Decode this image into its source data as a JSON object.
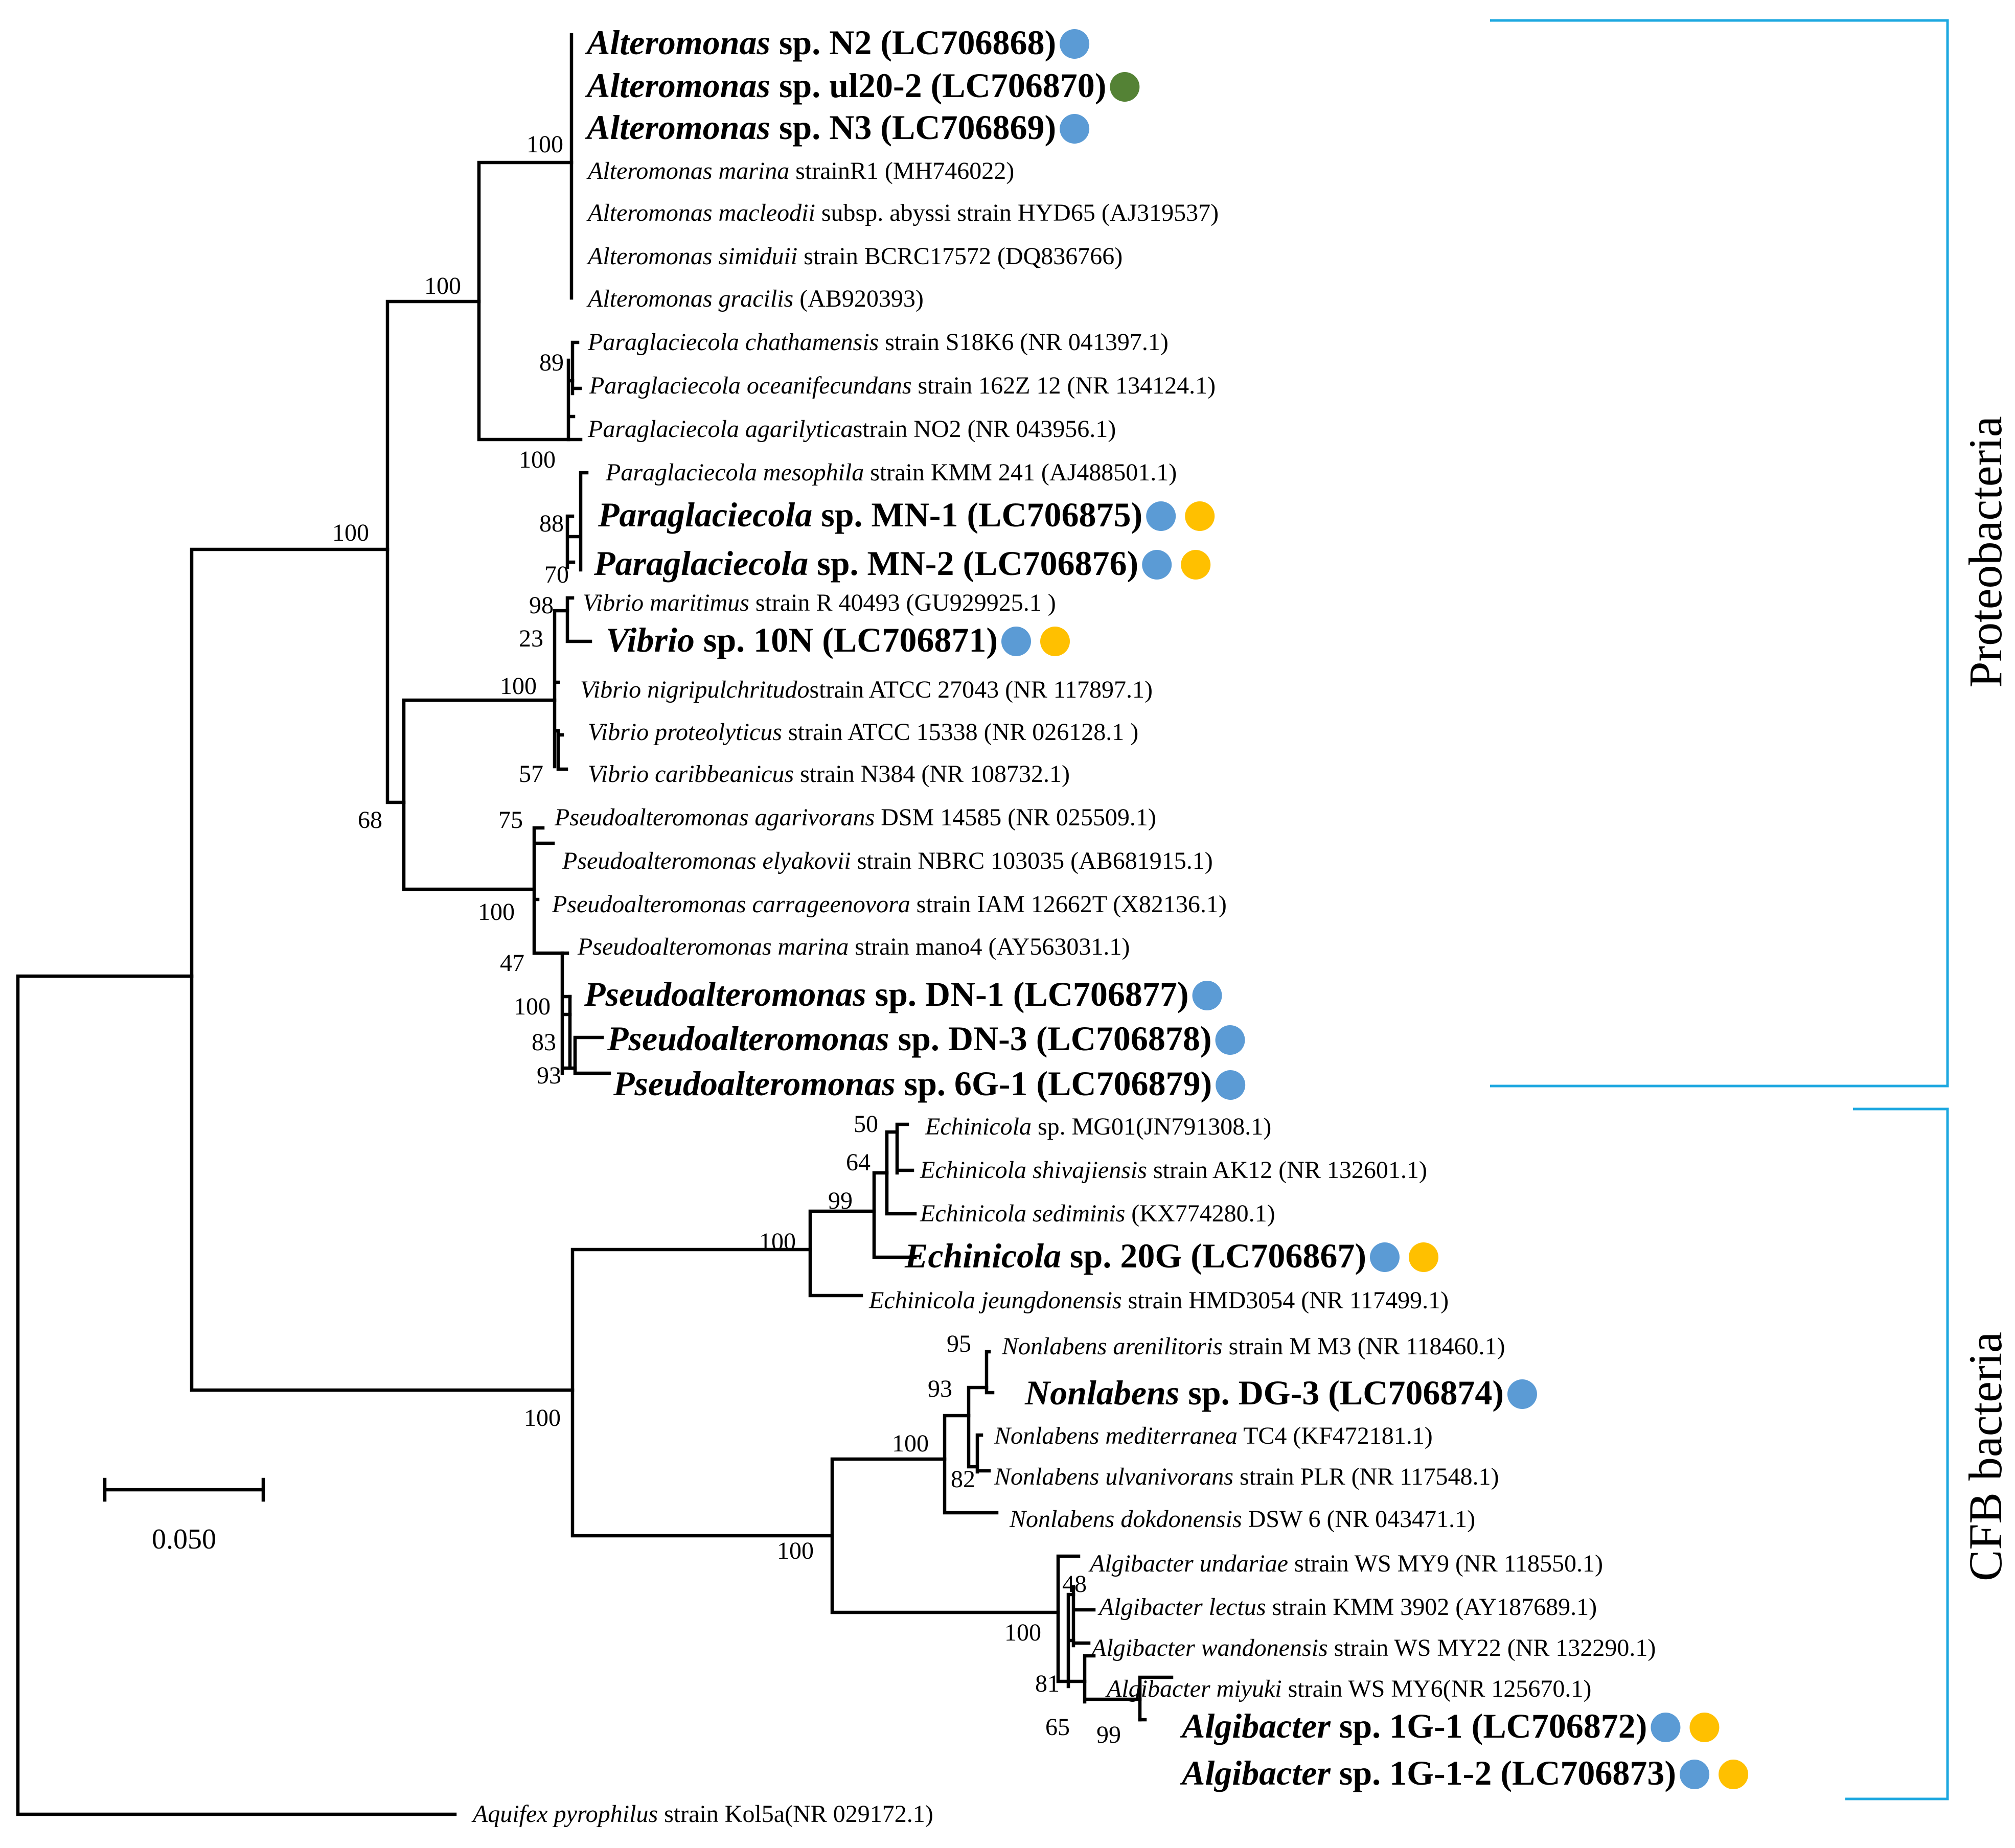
{
  "colors": {
    "blue": "#5b9bd5",
    "green": "#548235",
    "yellow": "#ffc000",
    "bracket": "#1ea8e0"
  },
  "clades": {
    "proteobacteria": "Proteobacteria",
    "cfb": "CFB bacteria"
  },
  "scale_bar": {
    "label": "0.050"
  },
  "taxa": {
    "alt_n2": {
      "genus": "Alteromonas",
      "rest": " sp. N2 (LC706868)",
      "dots": [
        "blue"
      ]
    },
    "alt_ul20": {
      "genus": "Alteromonas",
      "rest": " sp. ul20-2 (LC706870)",
      "dots": [
        "green"
      ]
    },
    "alt_n3": {
      "genus": "Alteromonas",
      "rest": " sp. N3 (LC706869)",
      "dots": [
        "blue"
      ]
    },
    "alt_marina": {
      "genus": "Alteromonas marina",
      "rest": " strainR1 (MH746022)"
    },
    "alt_macleodii": {
      "genus": "Alteromonas macleodii",
      "rest": " subsp. abyssi strain HYD65 (AJ319537)"
    },
    "alt_simiduii": {
      "genus": "Alteromonas simiduii",
      "rest": " strain BCRC17572 (DQ836766)"
    },
    "alt_gracilis": {
      "genus": "Alteromonas gracilis",
      "rest": " (AB920393)"
    },
    "pg_chath": {
      "genus": "Paraglaciecola chathamensis",
      "rest": " strain S18K6 (NR 041397.1)"
    },
    "pg_ocean": {
      "genus": "Paraglaciecola oceanifecundans",
      "rest": " strain 162Z 12 (NR 134124.1)"
    },
    "pg_agar": {
      "genus": "Paraglaciecola agarilytica",
      "rest": "strain NO2 (NR 043956.1)"
    },
    "pg_meso": {
      "genus": "Paraglaciecola mesophila",
      "rest": " strain KMM 241 (AJ488501.1)"
    },
    "pg_mn1": {
      "genus": "Paraglaciecola",
      "rest": " sp. MN-1 (LC706875)",
      "dots": [
        "blue",
        "yellow"
      ]
    },
    "pg_mn2": {
      "genus": "Paraglaciecola",
      "rest": " sp. MN-2 (LC706876)",
      "dots": [
        "blue",
        "yellow"
      ]
    },
    "vib_marit": {
      "genus": "Vibrio maritimus",
      "rest": " strain R 40493 (GU929925.1 )"
    },
    "vib_10n": {
      "genus": "Vibrio",
      "rest": " sp. 10N (LC706871)",
      "dots": [
        "blue",
        "yellow"
      ]
    },
    "vib_nigri": {
      "genus": "Vibrio nigripulchritudo",
      "rest": "strain ATCC 27043 (NR 117897.1)"
    },
    "vib_prot": {
      "genus": "Vibrio proteolyticus",
      "rest": " strain ATCC 15338 (NR 026128.1 )"
    },
    "vib_carib": {
      "genus": "Vibrio caribbeanicus",
      "rest": " strain N384 (NR 108732.1)"
    },
    "ps_agari": {
      "genus": "Pseudoalteromonas agarivorans",
      "rest": " DSM 14585 (NR 025509.1)"
    },
    "ps_elya": {
      "genus": "Pseudoalteromonas elyakovii",
      "rest": " strain NBRC 103035 (AB681915.1)"
    },
    "ps_carr": {
      "genus": "Pseudoalteromonas carrageenovora",
      "rest": " strain IAM 12662T (X82136.1)"
    },
    "ps_marina": {
      "genus": "Pseudoalteromonas marina",
      "rest": " strain mano4 (AY563031.1)"
    },
    "ps_dn1": {
      "genus": "Pseudoalteromonas",
      "rest": " sp. DN-1 (LC706877)",
      "dots": [
        "blue"
      ]
    },
    "ps_dn3": {
      "genus": "Pseudoalteromonas",
      "rest": " sp. DN-3 (LC706878)",
      "dots": [
        "blue"
      ]
    },
    "ps_6g1": {
      "genus": "Pseudoalteromonas",
      "rest": " sp. 6G-1 (LC706879)",
      "dots": [
        "blue"
      ]
    },
    "ech_mg01": {
      "genus": "Echinicola",
      "rest": " sp. MG01(JN791308.1)"
    },
    "ech_shiv": {
      "genus": "Echinicola shivajiensis",
      "rest": " strain AK12 (NR 132601.1)"
    },
    "ech_sed": {
      "genus": "Echinicola sediminis",
      "rest": " (KX774280.1)"
    },
    "ech_20g": {
      "genus": "Echinicola",
      "rest": " sp. 20G (LC706867)",
      "dots": [
        "blue",
        "yellow"
      ]
    },
    "ech_jeung": {
      "genus": "Echinicola jeungdonensis",
      "rest": " strain HMD3054 (NR 117499.1)"
    },
    "non_aren": {
      "genus": "Nonlabens arenilitoris",
      "rest": " strain M M3 (NR 118460.1)"
    },
    "non_dg3": {
      "genus": "Nonlabens",
      "rest": " sp. DG-3 (LC706874)",
      "dots": [
        "blue"
      ]
    },
    "non_medit": {
      "genus": "Nonlabens mediterranea",
      "rest": " TC4 (KF472181.1)"
    },
    "non_ulva": {
      "genus": "Nonlabens ulvanivorans",
      "rest": " strain PLR (NR 117548.1)"
    },
    "non_dokd": {
      "genus": "Nonlabens dokdonensis",
      "rest": " DSW 6 (NR 043471.1)"
    },
    "alg_undar": {
      "genus": "Algibacter undariae",
      "rest": " strain WS MY9 (NR 118550.1)"
    },
    "alg_lectus": {
      "genus": "Algibacter lectus",
      "rest": " strain KMM 3902 (AY187689.1)"
    },
    "alg_wand": {
      "genus": "Algibacter wandonensis",
      "rest": " strain WS MY22 (NR 132290.1)"
    },
    "alg_miyuki": {
      "genus": "Algibacter miyuki",
      "rest": " strain WS MY6(NR 125670.1)"
    },
    "alg_1g1": {
      "genus": "Algibacter",
      "rest": " sp. 1G-1 (LC706872)",
      "dots": [
        "blue",
        "yellow"
      ]
    },
    "alg_1g12": {
      "genus": "Algibacter",
      "rest": " sp. 1G-1-2 (LC706873)",
      "dots": [
        "blue",
        "yellow"
      ]
    },
    "aquifex": {
      "genus": "Aquifex pyrophilus",
      "rest": " strain Kol5a(NR 029172.1)"
    }
  },
  "bootstrap": {
    "alt": "100",
    "alt_pg": "100",
    "proteo_main": "100",
    "pg_89": "89",
    "pg_100": "100",
    "pg_88": "88",
    "pg_70": "70",
    "vib_98": "98",
    "vib_23": "23",
    "vib_100": "100",
    "vib_57": "57",
    "vib_ps": "68",
    "ps_75": "75",
    "ps_100a": "100",
    "ps_47": "47",
    "ps_100b": "100",
    "ps_83": "83",
    "ps_93": "93",
    "cfb_root": "100",
    "ech_50": "50",
    "ech_64": "64",
    "ech_99": "99",
    "ech_100": "100",
    "non_alg": "100",
    "non_100": "100",
    "non_95": "95",
    "non_93": "93",
    "non_82": "82",
    "alg_100": "100",
    "alg_48": "48",
    "alg_81": "81",
    "alg_65": "65",
    "alg_99": "99"
  }
}
